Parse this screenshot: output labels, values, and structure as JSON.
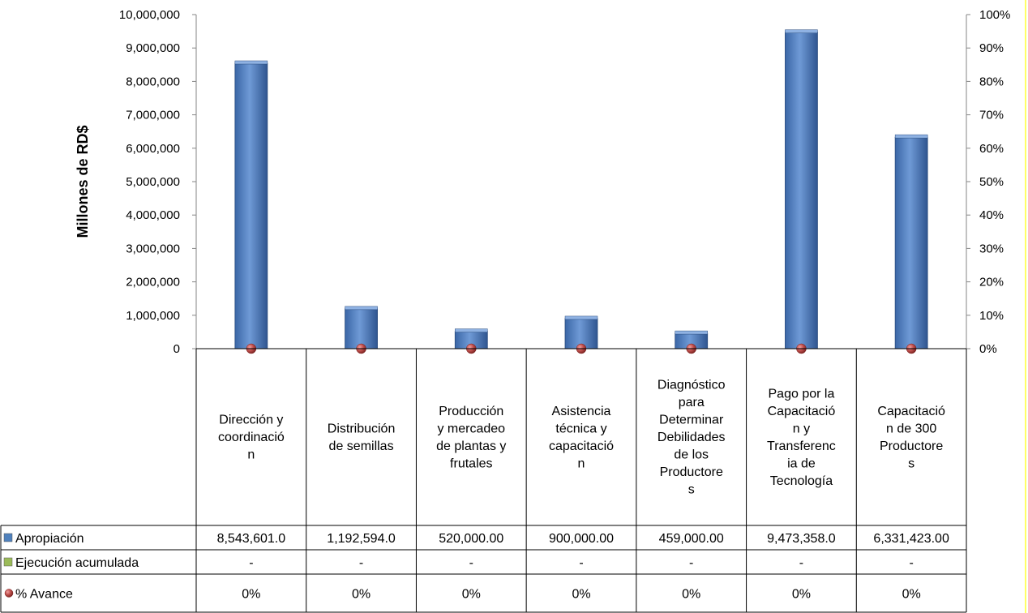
{
  "chart_data": {
    "type": "bar",
    "ylabel": "Millones de RD$",
    "y_ticks": [
      "0",
      "1,000,000",
      "2,000,000",
      "3,000,000",
      "4,000,000",
      "5,000,000",
      "6,000,000",
      "7,000,000",
      "8,000,000",
      "9,000,000",
      "10,000,000"
    ],
    "y2_ticks": [
      "0%",
      "10%",
      "20%",
      "30%",
      "40%",
      "50%",
      "60%",
      "70%",
      "80%",
      "90%",
      "100%"
    ],
    "ylim": [
      0,
      10000000
    ],
    "y2lim": [
      0,
      1
    ],
    "categories": [
      [
        "Dirección y",
        "coordinació",
        "n"
      ],
      [
        "Distribución",
        "de semillas"
      ],
      [
        "Producción",
        "y mercadeo",
        "de plantas y",
        "frutales"
      ],
      [
        "Asistencia",
        "técnica y",
        "capacitació",
        "n"
      ],
      [
        "Diagnóstico",
        "para",
        "Determinar",
        "Debilidades",
        "de los",
        "Productore",
        "s"
      ],
      [
        "Pago por la",
        "Capacitació",
        "n y",
        "Transferenc",
        "ia de",
        "Tecnología"
      ],
      [
        "Capacitació",
        "n de 300",
        "Productore",
        "s"
      ]
    ],
    "series": [
      {
        "name": "Apropiación",
        "type": "bar",
        "color": "#4f81bd",
        "values": [
          8543601.0,
          1192594.0,
          520000.0,
          900000.0,
          459000.0,
          9473358.0,
          6331423.0
        ],
        "labels": [
          "8,543,601.0",
          "1,192,594.0",
          "520,000.00",
          "900,000.00",
          "459,000.00",
          "9,473,358.0",
          "6,331,423.00"
        ]
      },
      {
        "name": "Ejecución acumulada",
        "type": "bar",
        "color": "#9bbb59",
        "values": [
          0,
          0,
          0,
          0,
          0,
          0,
          0
        ],
        "labels": [
          "-",
          "-",
          "-",
          "-",
          "-",
          "-",
          "-"
        ]
      },
      {
        "name": "% Avance",
        "type": "scatter",
        "axis": "secondary",
        "color": "#c0504d",
        "values": [
          0,
          0,
          0,
          0,
          0,
          0,
          0
        ],
        "labels": [
          "0%",
          "0%",
          "0%",
          "0%",
          "0%",
          "0%",
          "0%"
        ]
      }
    ],
    "grid": false,
    "legend": "data-table"
  }
}
